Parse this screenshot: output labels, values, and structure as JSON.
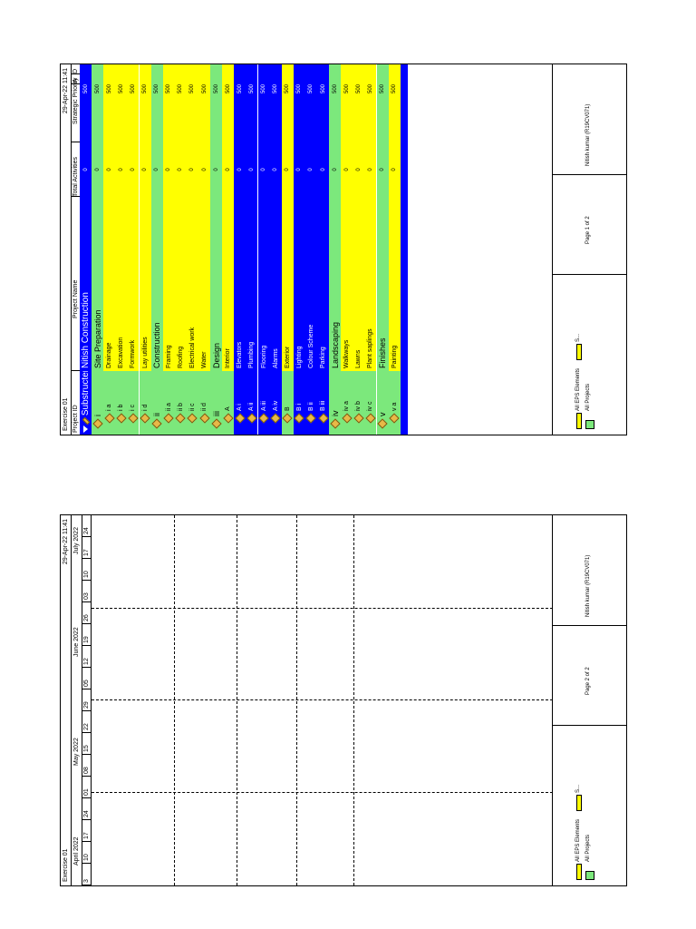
{
  "page_left": {
    "header": {
      "left": "Exercise 01",
      "right": "29-Apr-22 11:41"
    },
    "months": [
      "April 2022",
      "May 2022",
      "June 2022",
      "July 2022"
    ],
    "weeks": [
      "3",
      "10",
      "17",
      "24",
      "01",
      "08",
      "15",
      "22",
      "29",
      "05",
      "12",
      "19",
      "26",
      "03",
      "10",
      "17",
      "24"
    ],
    "footer": {
      "legend_1": "All EPS Elements",
      "legend_2": "All Projects",
      "legend_3": "S...",
      "page": "Page 2 of 2",
      "author": "Nitish kumar (R19CV071)"
    }
  },
  "page_right": {
    "header": {
      "left": "Exercise 01",
      "right": "29-Apr-22 11:41"
    },
    "columns": {
      "project_id": "Project ID",
      "project_name": "Project Name",
      "total_activities": "Total Activities",
      "strategic_priority": "Strategic Priority",
      "a": "A",
      "d": "D"
    },
    "rows": [
      {
        "id": "Substructer",
        "name": "Nitish Construction",
        "acts": "0",
        "prio": "500",
        "kind": "top"
      },
      {
        "id": "i",
        "name": "Site Preparation",
        "acts": "0",
        "prio": "500",
        "kind": "group"
      },
      {
        "id": "i a",
        "name": "Drainage",
        "acts": "0",
        "prio": "500",
        "kind": "item"
      },
      {
        "id": "i b",
        "name": "Excavation",
        "acts": "0",
        "prio": "500",
        "kind": "item"
      },
      {
        "id": "i c",
        "name": "Formwork",
        "acts": "0",
        "prio": "500",
        "kind": "item"
      },
      {
        "id": "i d",
        "name": "Lay utilities",
        "acts": "0",
        "prio": "500",
        "kind": "item"
      },
      {
        "id": "ii",
        "name": "Construction",
        "acts": "0",
        "prio": "500",
        "kind": "group"
      },
      {
        "id": "ii a",
        "name": "Framing",
        "acts": "0",
        "prio": "500",
        "kind": "item"
      },
      {
        "id": "ii b",
        "name": "Roofing",
        "acts": "0",
        "prio": "500",
        "kind": "item"
      },
      {
        "id": "ii c",
        "name": "Electrical work",
        "acts": "0",
        "prio": "500",
        "kind": "item"
      },
      {
        "id": "ii d",
        "name": "Water",
        "acts": "0",
        "prio": "500",
        "kind": "item"
      },
      {
        "id": "iii",
        "name": "Design",
        "acts": "0",
        "prio": "500",
        "kind": "group"
      },
      {
        "id": "A",
        "name": "Interior",
        "acts": "0",
        "prio": "500",
        "kind": "item"
      },
      {
        "id": "A i",
        "name": "Elevators",
        "acts": "0",
        "prio": "500",
        "kind": "blue"
      },
      {
        "id": "A ii",
        "name": "Plumbing",
        "acts": "0",
        "prio": "500",
        "kind": "blue"
      },
      {
        "id": "A iii",
        "name": "Flooring",
        "acts": "0",
        "prio": "500",
        "kind": "blue"
      },
      {
        "id": "A iv",
        "name": "Alarms",
        "acts": "0",
        "prio": "500",
        "kind": "blue"
      },
      {
        "id": "B",
        "name": "Exterior",
        "acts": "0",
        "prio": "500",
        "kind": "item"
      },
      {
        "id": "B i",
        "name": "Lighting",
        "acts": "0",
        "prio": "500",
        "kind": "blue"
      },
      {
        "id": "B ii",
        "name": "Colour Scheme",
        "acts": "0",
        "prio": "500",
        "kind": "blue"
      },
      {
        "id": "B iii",
        "name": "Parking",
        "acts": "0",
        "prio": "500",
        "kind": "blue"
      },
      {
        "id": "iv",
        "name": "Landscaping",
        "acts": "0",
        "prio": "500",
        "kind": "group"
      },
      {
        "id": "iv a",
        "name": "Walkways",
        "acts": "0",
        "prio": "500",
        "kind": "item"
      },
      {
        "id": "iv b",
        "name": "Lawns",
        "acts": "0",
        "prio": "500",
        "kind": "item"
      },
      {
        "id": "iv c",
        "name": "Plant saplings",
        "acts": "0",
        "prio": "500",
        "kind": "item"
      },
      {
        "id": "v",
        "name": "Finishes",
        "acts": "0",
        "prio": "500",
        "kind": "group"
      },
      {
        "id": "v a",
        "name": "Painting",
        "acts": "0",
        "prio": "500",
        "kind": "item"
      }
    ],
    "footer": {
      "legend_1": "All EPS Elements",
      "legend_2": "All Projects",
      "legend_3": "S...",
      "page": "Page 1 of 2",
      "author": "Nitish kumar (R19CV071)"
    }
  },
  "colors": {
    "blue": "#0000ff",
    "green": "#7ce87c",
    "yellow": "#ffff00",
    "diamond": "#e8b947"
  }
}
